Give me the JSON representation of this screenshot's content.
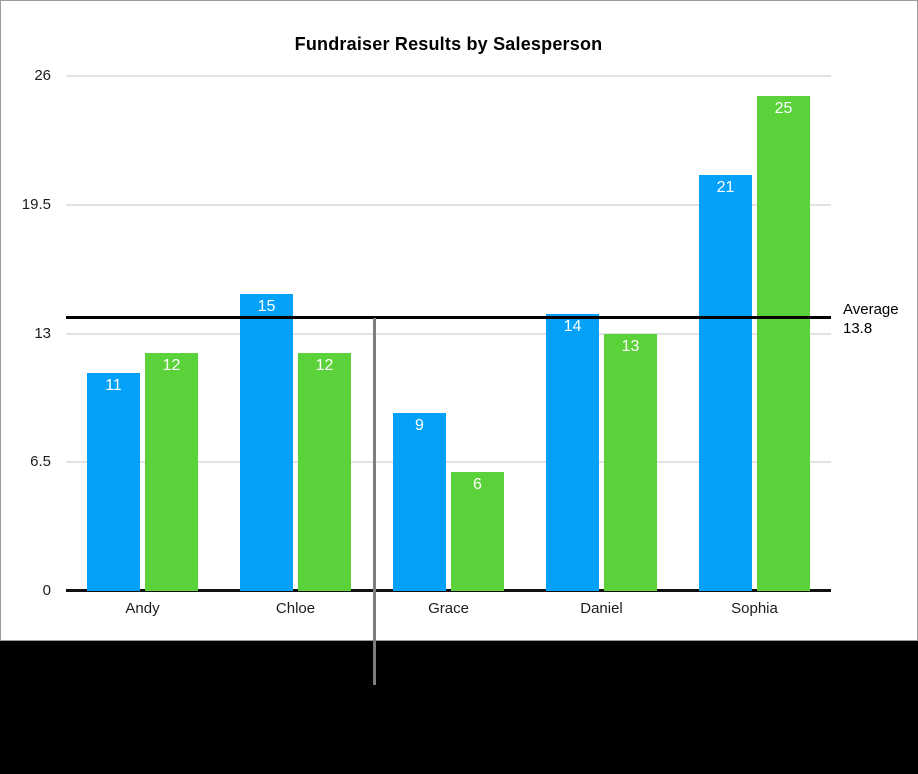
{
  "window": {
    "background_color": "#000000",
    "card_background_color": "#ffffff",
    "card_border_color": "#9b9b9b"
  },
  "chart_data": {
    "type": "bar",
    "title": "Fundraiser Results by Salesperson",
    "categories": [
      "Andy",
      "Chloe",
      "Grace",
      "Daniel",
      "Sophia"
    ],
    "series": [
      {
        "name": "blue",
        "color": "#04a1fb",
        "values": [
          11,
          15,
          9,
          14,
          21
        ]
      },
      {
        "name": "green",
        "color": "#5cd23a",
        "values": [
          12,
          12,
          6,
          13,
          25
        ]
      }
    ],
    "value_labels_shown": true,
    "value_label_color": "#ffffff",
    "ylim": [
      0,
      26
    ],
    "yticks": [
      {
        "value": 26,
        "label": "26"
      },
      {
        "value": 19.5,
        "label": "19.5"
      },
      {
        "value": 13,
        "label": "13"
      },
      {
        "value": 6.5,
        "label": "6.5"
      },
      {
        "value": 0,
        "label": "0"
      }
    ],
    "grid": true,
    "grid_color": "#e2e2e2",
    "baseline_color": "#111111",
    "tick_label_color": "#1d1d1f",
    "legend": false,
    "average_line": {
      "value": 13.8,
      "label": "Average",
      "value_label": "13.8",
      "color": "#000000"
    },
    "divider_line": {
      "between_categories": [
        "Chloe",
        "Grace"
      ],
      "color": "#7d7d7d"
    }
  }
}
